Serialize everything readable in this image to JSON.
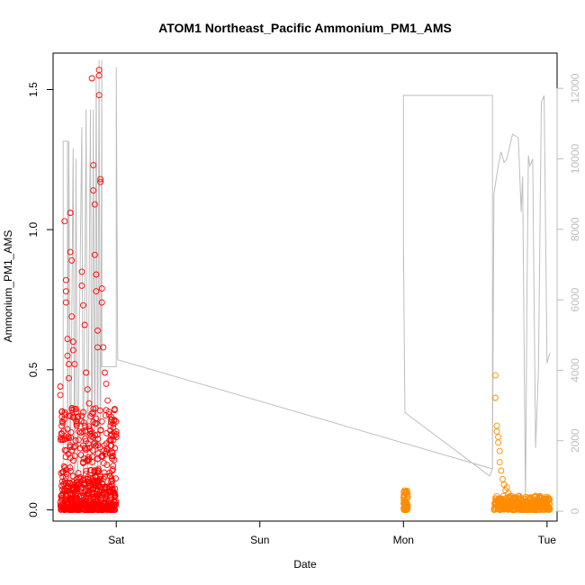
{
  "chart_data": {
    "type": "scatter",
    "title": "ATOM1 Northeast_Pacific Ammonium_PM1_AMS",
    "xlabel": "Date",
    "ylabel": "Ammonium_PM1_AMS",
    "x_ticks": [
      "Sat",
      "Sun",
      "Mon",
      "Tue"
    ],
    "x_tick_days": [
      1,
      2,
      3,
      4
    ],
    "xlim_days": [
      0.56,
      4.07
    ],
    "ylim": [
      -0.04,
      1.63
    ],
    "y_ticks": [
      0.0,
      0.5,
      1.0,
      1.5
    ],
    "y_tick_labels": [
      "0.0",
      "0.5",
      "1.0",
      "1.5"
    ],
    "secondary_axis": {
      "label": "",
      "ylim": [
        -280,
        13000
      ],
      "ticks": [
        0,
        2000,
        4000,
        6000,
        8000,
        10000,
        12000
      ],
      "tick_labels": [
        "0",
        "2000",
        "4000",
        "6000",
        "8000",
        "10000",
        "12000"
      ],
      "color": "#bebebe"
    },
    "legend": "none",
    "grid": false,
    "series": [
      {
        "marker": "open-circle",
        "color": "#ff0000",
        "x_range": [
          0.61,
          1.0
        ],
        "y_range": [
          0.0,
          1.57
        ],
        "points": [
          [
            0.61,
            0.44
          ],
          [
            0.61,
            0.41
          ],
          [
            0.62,
            0.35
          ],
          [
            0.62,
            0.3
          ],
          [
            0.63,
            0.25
          ],
          [
            0.64,
            1.03
          ],
          [
            0.65,
            0.82
          ],
          [
            0.65,
            0.78
          ],
          [
            0.65,
            0.74
          ],
          [
            0.66,
            0.61
          ],
          [
            0.66,
            0.55
          ],
          [
            0.67,
            0.52
          ],
          [
            0.67,
            0.47
          ],
          [
            0.68,
            1.06
          ],
          [
            0.68,
            0.92
          ],
          [
            0.69,
            0.89
          ],
          [
            0.69,
            0.69
          ],
          [
            0.7,
            0.6
          ],
          [
            0.7,
            0.57
          ],
          [
            0.71,
            0.52
          ],
          [
            0.72,
            0.36
          ],
          [
            0.73,
            0.33
          ],
          [
            0.74,
            0.28
          ],
          [
            0.75,
            0.22
          ],
          [
            0.76,
            0.85
          ],
          [
            0.76,
            0.8
          ],
          [
            0.77,
            0.73
          ],
          [
            0.78,
            0.66
          ],
          [
            0.79,
            0.49
          ],
          [
            0.8,
            0.43
          ],
          [
            0.81,
            0.38
          ],
          [
            0.83,
            1.54
          ],
          [
            0.84,
            1.23
          ],
          [
            0.84,
            1.14
          ],
          [
            0.85,
            1.09
          ],
          [
            0.85,
            0.91
          ],
          [
            0.86,
            0.84
          ],
          [
            0.86,
            0.78
          ],
          [
            0.87,
            0.64
          ],
          [
            0.87,
            0.58
          ],
          [
            0.88,
            1.57
          ],
          [
            0.88,
            1.55
          ],
          [
            0.88,
            1.48
          ],
          [
            0.89,
            1.18
          ],
          [
            0.89,
            1.17
          ],
          [
            0.9,
            0.79
          ],
          [
            0.9,
            0.74
          ],
          [
            0.91,
            0.58
          ],
          [
            0.92,
            0.49
          ],
          [
            0.93,
            0.45
          ],
          [
            0.94,
            0.39
          ],
          [
            0.95,
            0.34
          ],
          [
            0.96,
            0.3
          ],
          [
            0.97,
            0.27
          ],
          [
            0.98,
            0.25
          ],
          [
            0.99,
            0.22
          ],
          [
            1.0,
            0.28
          ],
          [
            1.0,
            0.26
          ],
          [
            1.0,
            0.27
          ]
        ],
        "baseline": {
          "count": 440,
          "y_min": 0.0,
          "y_max": 0.12
        }
      },
      {
        "marker": "open-circle",
        "color": "#ff8c00",
        "x_range": [
          3.0,
          4.02
        ],
        "y_range": [
          0.0,
          0.48
        ],
        "points": [
          [
            3.64,
            0.48
          ],
          [
            3.64,
            0.4
          ],
          [
            3.65,
            0.3
          ],
          [
            3.65,
            0.28
          ],
          [
            3.66,
            0.26
          ],
          [
            3.66,
            0.24
          ],
          [
            3.67,
            0.21
          ],
          [
            3.67,
            0.17
          ],
          [
            3.68,
            0.14
          ],
          [
            3.69,
            0.11
          ],
          [
            3.7,
            0.09
          ],
          [
            3.71,
            0.07
          ],
          [
            3.72,
            0.08
          ],
          [
            3.73,
            0.06
          ],
          [
            3.75,
            0.05
          ],
          [
            3.78,
            0.04
          ],
          [
            3.85,
            0.03
          ],
          [
            3.92,
            0.05
          ],
          [
            3.96,
            0.04
          ],
          [
            4.0,
            0.03
          ]
        ],
        "clusters": [
          {
            "x_range": [
              3.0,
              3.03
            ],
            "y_range": [
              0.0,
              0.07
            ],
            "count": 60
          },
          {
            "x_range": [
              3.63,
              4.02
            ],
            "y_range": [
              0.0,
              0.05
            ],
            "count": 340
          }
        ]
      },
      {
        "type": "line",
        "color": "#bebebe",
        "axis": "secondary",
        "description_units": "secondary axis units",
        "points": [
          [
            0.63,
            200
          ],
          [
            0.63,
            10500
          ],
          [
            0.66,
            10500
          ],
          [
            0.66,
            500
          ],
          [
            0.67,
            10500
          ],
          [
            0.68,
            300
          ],
          [
            0.7,
            10300
          ],
          [
            0.71,
            400
          ],
          [
            0.72,
            10000
          ],
          [
            0.73,
            500
          ],
          [
            0.76,
            10900
          ],
          [
            0.77,
            400
          ],
          [
            0.79,
            11400
          ],
          [
            0.8,
            600
          ],
          [
            0.82,
            11400
          ],
          [
            0.83,
            500
          ],
          [
            0.84,
            11400
          ],
          [
            0.85,
            700
          ],
          [
            0.86,
            12400
          ],
          [
            0.87,
            400
          ],
          [
            0.88,
            12800
          ],
          [
            0.89,
            600
          ],
          [
            0.9,
            12800
          ],
          [
            0.9,
            4100
          ],
          [
            0.98,
            4100
          ],
          [
            1.0,
            4100
          ],
          [
            1.0,
            12600
          ],
          [
            1.01,
            4300
          ],
          [
            3.62,
            1200
          ],
          [
            3.6,
            1000
          ],
          [
            3.01,
            2800
          ],
          [
            3.0,
            7500
          ],
          [
            3.0,
            6800
          ],
          [
            3.0,
            11800
          ],
          [
            3.62,
            11800
          ],
          [
            3.62,
            1200
          ],
          [
            3.63,
            9000
          ],
          [
            3.66,
            9800
          ],
          [
            3.68,
            10200
          ],
          [
            3.7,
            9900
          ],
          [
            3.72,
            10000
          ],
          [
            3.76,
            10700
          ],
          [
            3.8,
            10600
          ],
          [
            3.82,
            8500
          ],
          [
            3.83,
            9500
          ],
          [
            3.85,
            200
          ],
          [
            3.86,
            6000
          ],
          [
            3.87,
            10100
          ],
          [
            3.88,
            9800
          ],
          [
            3.9,
            10000
          ],
          [
            3.92,
            1800
          ],
          [
            3.94,
            4000
          ],
          [
            3.96,
            11600
          ],
          [
            3.98,
            11800
          ],
          [
            4.0,
            4200
          ],
          [
            4.02,
            4500
          ]
        ]
      }
    ]
  }
}
